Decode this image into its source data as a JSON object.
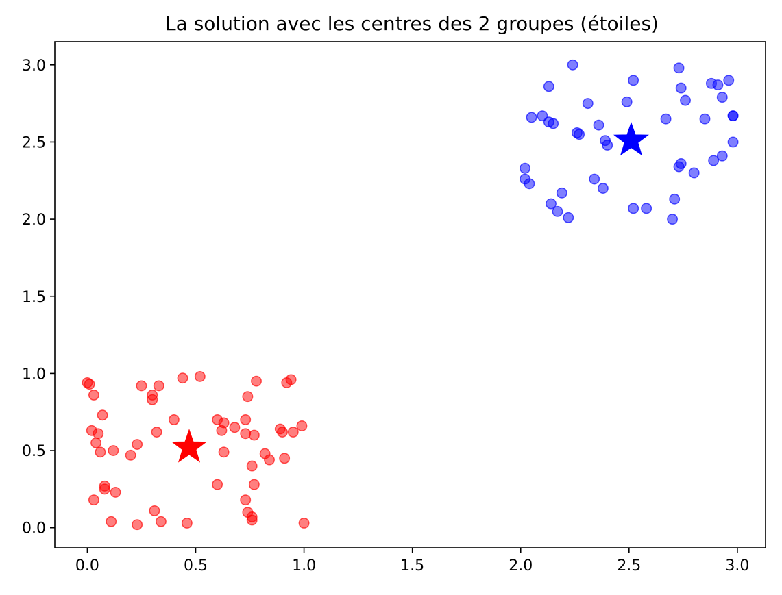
{
  "chart_data": {
    "type": "scatter",
    "title": "La solution avec les centres des 2 groupes (étoiles)",
    "xlabel": "",
    "ylabel": "",
    "xlim": [
      -0.15,
      3.13
    ],
    "ylim": [
      -0.13,
      3.15
    ],
    "xticks": [
      0.0,
      0.5,
      1.0,
      1.5,
      2.0,
      2.5,
      3.0
    ],
    "xtick_labels": [
      "0.0",
      "0.5",
      "1.0",
      "1.5",
      "2.0",
      "2.5",
      "3.0"
    ],
    "yticks": [
      0.0,
      0.5,
      1.0,
      1.5,
      2.0,
      2.5,
      3.0
    ],
    "ytick_labels": [
      "0.0",
      "0.5",
      "1.0",
      "1.5",
      "2.0",
      "2.5",
      "3.0"
    ],
    "grid": false,
    "series": [
      {
        "color": "#ff0000",
        "marker": "circle",
        "opacity": 0.5,
        "points": [
          [
            0.0,
            0.94
          ],
          [
            0.01,
            0.93
          ],
          [
            0.03,
            0.86
          ],
          [
            0.02,
            0.63
          ],
          [
            0.05,
            0.61
          ],
          [
            0.04,
            0.55
          ],
          [
            0.06,
            0.49
          ],
          [
            0.07,
            0.73
          ],
          [
            0.12,
            0.5
          ],
          [
            0.03,
            0.18
          ],
          [
            0.08,
            0.27
          ],
          [
            0.08,
            0.25
          ],
          [
            0.13,
            0.23
          ],
          [
            0.11,
            0.04
          ],
          [
            0.2,
            0.47
          ],
          [
            0.23,
            0.54
          ],
          [
            0.25,
            0.92
          ],
          [
            0.3,
            0.86
          ],
          [
            0.3,
            0.83
          ],
          [
            0.32,
            0.62
          ],
          [
            0.33,
            0.92
          ],
          [
            0.23,
            0.02
          ],
          [
            0.31,
            0.11
          ],
          [
            0.34,
            0.04
          ],
          [
            0.4,
            0.7
          ],
          [
            0.44,
            0.97
          ],
          [
            0.46,
            0.03
          ],
          [
            0.52,
            0.98
          ],
          [
            0.6,
            0.7
          ],
          [
            0.6,
            0.28
          ],
          [
            0.62,
            0.63
          ],
          [
            0.63,
            0.68
          ],
          [
            0.63,
            0.49
          ],
          [
            0.68,
            0.65
          ],
          [
            0.73,
            0.61
          ],
          [
            0.73,
            0.7
          ],
          [
            0.74,
            0.85
          ],
          [
            0.73,
            0.18
          ],
          [
            0.74,
            0.1
          ],
          [
            0.76,
            0.07
          ],
          [
            0.76,
            0.05
          ],
          [
            0.76,
            0.4
          ],
          [
            0.77,
            0.6
          ],
          [
            0.77,
            0.28
          ],
          [
            0.78,
            0.95
          ],
          [
            0.82,
            0.48
          ],
          [
            0.84,
            0.44
          ],
          [
            0.89,
            0.64
          ],
          [
            0.9,
            0.62
          ],
          [
            0.91,
            0.45
          ],
          [
            0.92,
            0.94
          ],
          [
            0.94,
            0.96
          ],
          [
            0.95,
            0.62
          ],
          [
            0.99,
            0.66
          ],
          [
            1.0,
            0.03
          ]
        ]
      },
      {
        "color": "#0000ff",
        "marker": "circle",
        "opacity": 0.5,
        "points": [
          [
            2.02,
            2.33
          ],
          [
            2.02,
            2.26
          ],
          [
            2.04,
            2.23
          ],
          [
            2.05,
            2.66
          ],
          [
            2.1,
            2.67
          ],
          [
            2.13,
            2.63
          ],
          [
            2.15,
            2.62
          ],
          [
            2.13,
            2.86
          ],
          [
            2.14,
            2.1
          ],
          [
            2.17,
            2.05
          ],
          [
            2.19,
            2.17
          ],
          [
            2.22,
            2.01
          ],
          [
            2.24,
            3.0
          ],
          [
            2.26,
            2.56
          ],
          [
            2.27,
            2.55
          ],
          [
            2.31,
            2.75
          ],
          [
            2.34,
            2.26
          ],
          [
            2.36,
            2.61
          ],
          [
            2.38,
            2.2
          ],
          [
            2.39,
            2.51
          ],
          [
            2.4,
            2.48
          ],
          [
            2.49,
            2.76
          ],
          [
            2.52,
            2.9
          ],
          [
            2.52,
            2.07
          ],
          [
            2.58,
            2.07
          ],
          [
            2.67,
            2.65
          ],
          [
            2.7,
            2.0
          ],
          [
            2.71,
            2.13
          ],
          [
            2.73,
            2.34
          ],
          [
            2.74,
            2.36
          ],
          [
            2.73,
            2.98
          ],
          [
            2.74,
            2.85
          ],
          [
            2.76,
            2.77
          ],
          [
            2.8,
            2.3
          ],
          [
            2.85,
            2.65
          ],
          [
            2.88,
            2.88
          ],
          [
            2.91,
            2.87
          ],
          [
            2.89,
            2.38
          ],
          [
            2.93,
            2.79
          ],
          [
            2.93,
            2.41
          ],
          [
            2.96,
            2.9
          ],
          [
            2.98,
            2.67
          ],
          [
            2.98,
            2.67
          ],
          [
            2.98,
            2.5
          ]
        ]
      }
    ],
    "centers": [
      {
        "x": 0.47,
        "y": 0.52,
        "color": "#ff0000",
        "marker": "star"
      },
      {
        "x": 2.51,
        "y": 2.51,
        "color": "#0000ff",
        "marker": "star"
      }
    ]
  }
}
